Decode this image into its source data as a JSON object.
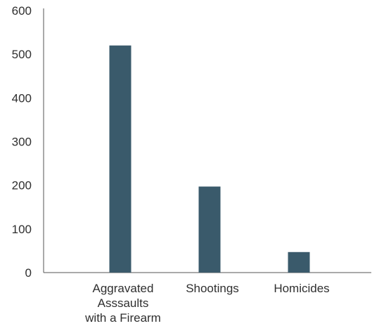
{
  "chart_data": {
    "type": "bar",
    "categories": [
      [
        "Aggravated",
        "Asssaults",
        "with a Firearm"
      ],
      [
        "Shootings"
      ],
      [
        "Homicides"
      ]
    ],
    "values": [
      520,
      197,
      47
    ],
    "ylim": [
      0,
      600
    ],
    "yticks": [
      0,
      100,
      200,
      300,
      400,
      500,
      600
    ],
    "bar_color": "#3a5a6b",
    "axis_color": "#555555",
    "grid": false,
    "legend": "none"
  }
}
